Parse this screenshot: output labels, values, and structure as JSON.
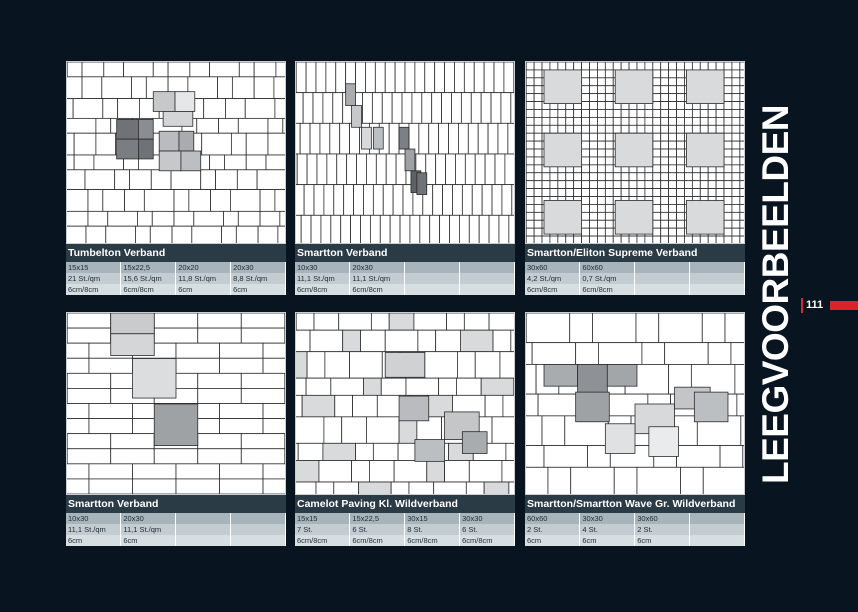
{
  "page": {
    "title": "LEEGVOORBEELDEN",
    "number": "111"
  },
  "cards": [
    {
      "title": "Tumbelton Verband",
      "rows": [
        [
          "15x15",
          "15x22,5",
          "20x20",
          "20x30"
        ],
        [
          "21 St./qm",
          "15,6 St./qm",
          "11,8 St./qm",
          "8,8 St./qm"
        ],
        [
          "6cm/8cm",
          "6cm/8cm",
          "6cm",
          "6cm"
        ]
      ]
    },
    {
      "title": "Smartton Verband",
      "rows": [
        [
          "10x30",
          "20x30",
          "",
          ""
        ],
        [
          "11,1 St./qm",
          "11,1 St./qm",
          "",
          ""
        ],
        [
          "6cm/8cm",
          "6cm/8cm",
          "",
          ""
        ]
      ]
    },
    {
      "title": "Smartton/Eliton Supreme Verband",
      "rows": [
        [
          "30x60",
          "60x60",
          "",
          ""
        ],
        [
          "4,2 St./qm",
          "0,7 St./qm",
          "",
          ""
        ],
        [
          "6cm/8cm",
          "6cm/8cm",
          "",
          ""
        ]
      ]
    },
    {
      "title": "Smartton Verband",
      "rows": [
        [
          "10x30",
          "20x30",
          "",
          ""
        ],
        [
          "11,1 St./qm",
          "11,1 St./qm",
          "",
          ""
        ],
        [
          "6cm",
          "6cm",
          "",
          ""
        ]
      ]
    },
    {
      "title": "Camelot Paving Kl. Wildverband",
      "rows": [
        [
          "15x15",
          "15x22,5",
          "30x15",
          "30x30"
        ],
        [
          "7 St.",
          "6 St.",
          "8 St.",
          "6 St."
        ],
        [
          "6cm/8cm",
          "6cm/8cm",
          "6cm/8cm",
          "6cm/8cm"
        ]
      ]
    },
    {
      "title": "Smartton/Smartton Wave Gr. Wildverband",
      "rows": [
        [
          "60x60",
          "30x30",
          "30x60",
          ""
        ],
        [
          "2 St.",
          "4 St.",
          "2 St.",
          ""
        ],
        [
          "6cm",
          "6cm",
          "6cm",
          ""
        ]
      ]
    }
  ]
}
